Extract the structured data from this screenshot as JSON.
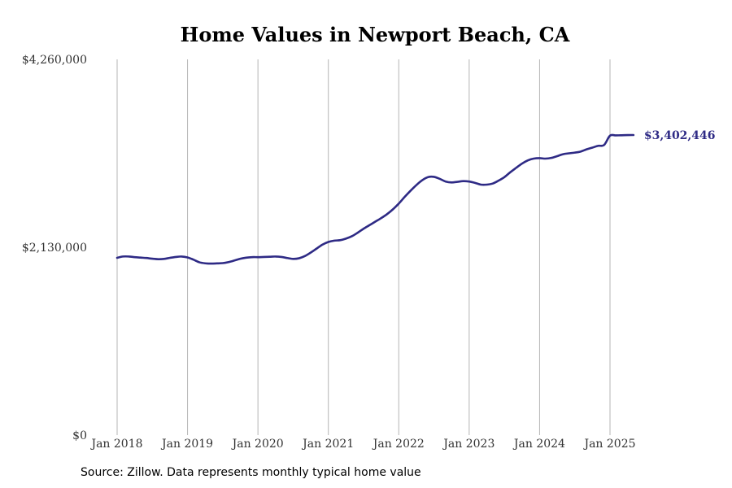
{
  "chart_data": {
    "type": "line",
    "title": "Home Values in Newport Beach, CA",
    "xlabel": "",
    "ylabel": "",
    "ylim": [
      0,
      4260000
    ],
    "y_ticks": [
      {
        "value": 0,
        "label": "$0"
      },
      {
        "value": 2130000,
        "label": "$2,130,000"
      },
      {
        "value": 4260000,
        "label": "$4,260,000"
      }
    ],
    "x_ticks": [
      {
        "value": "2018-01",
        "label": "Jan 2018"
      },
      {
        "value": "2019-01",
        "label": "Jan 2019"
      },
      {
        "value": "2020-01",
        "label": "Jan 2020"
      },
      {
        "value": "2021-01",
        "label": "Jan 2021"
      },
      {
        "value": "2022-01",
        "label": "Jan 2022"
      },
      {
        "value": "2023-01",
        "label": "Jan 2023"
      },
      {
        "value": "2024-01",
        "label": "Jan 2024"
      },
      {
        "value": "2025-01",
        "label": "Jan 2025"
      }
    ],
    "grid": "vertical",
    "line_color": "#2e2a85",
    "end_label": "$3,402,446",
    "source": "Source: Zillow. Data represents monthly typical home value",
    "series": [
      {
        "x": [
          "2018-01",
          "2018-02",
          "2018-03",
          "2018-04",
          "2018-05",
          "2018-06",
          "2018-07",
          "2018-08",
          "2018-09",
          "2018-10",
          "2018-11",
          "2018-12",
          "2019-01",
          "2019-02",
          "2019-03",
          "2019-04",
          "2019-05",
          "2019-06",
          "2019-07",
          "2019-08",
          "2019-09",
          "2019-10",
          "2019-11",
          "2019-12",
          "2020-01",
          "2020-02",
          "2020-03",
          "2020-04",
          "2020-05",
          "2020-06",
          "2020-07",
          "2020-08",
          "2020-09",
          "2020-10",
          "2020-11",
          "2020-12",
          "2021-01",
          "2021-02",
          "2021-03",
          "2021-04",
          "2021-05",
          "2021-06",
          "2021-07",
          "2021-08",
          "2021-09",
          "2021-10",
          "2021-11",
          "2021-12",
          "2022-01",
          "2022-02",
          "2022-03",
          "2022-04",
          "2022-05",
          "2022-06",
          "2022-07",
          "2022-08",
          "2022-09",
          "2022-10",
          "2022-11",
          "2022-12",
          "2023-01",
          "2023-02",
          "2023-03",
          "2023-04",
          "2023-05",
          "2023-06",
          "2023-07",
          "2023-08",
          "2023-09",
          "2023-10",
          "2023-11",
          "2023-12",
          "2024-01",
          "2024-02",
          "2024-03",
          "2024-04",
          "2024-05",
          "2024-06",
          "2024-07",
          "2024-08",
          "2024-09",
          "2024-10",
          "2024-11",
          "2024-12",
          "2025-01",
          "2025-02",
          "2025-03",
          "2025-04",
          "2025-05"
        ],
        "values": [
          2010000,
          2025000,
          2025000,
          2018000,
          2013000,
          2008000,
          2000000,
          1995000,
          1998000,
          2010000,
          2020000,
          2025000,
          2015000,
          1990000,
          1960000,
          1948000,
          1945000,
          1947000,
          1950000,
          1962000,
          1980000,
          2000000,
          2012000,
          2018000,
          2018000,
          2020000,
          2022000,
          2025000,
          2020000,
          2008000,
          1998000,
          2005000,
          2030000,
          2070000,
          2115000,
          2160000,
          2190000,
          2205000,
          2210000,
          2228000,
          2255000,
          2295000,
          2340000,
          2380000,
          2420000,
          2460000,
          2505000,
          2560000,
          2625000,
          2700000,
          2770000,
          2835000,
          2890000,
          2925000,
          2928000,
          2905000,
          2875000,
          2865000,
          2872000,
          2880000,
          2875000,
          2860000,
          2840000,
          2840000,
          2852000,
          2885000,
          2925000,
          2980000,
          3030000,
          3078000,
          3115000,
          3135000,
          3140000,
          3135000,
          3143000,
          3163000,
          3185000,
          3195000,
          3203000,
          3215000,
          3240000,
          3260000,
          3280000,
          3290000,
          3395000,
          3398000,
          3400000,
          3402000,
          3402446
        ]
      }
    ]
  }
}
